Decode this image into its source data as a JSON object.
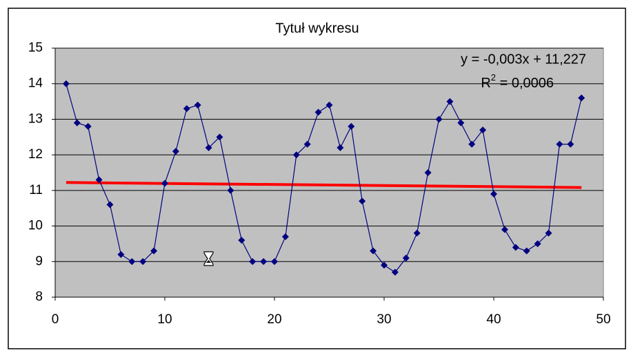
{
  "chart_data": {
    "type": "scatter",
    "title": "Tytuł wykresu",
    "x": [
      1,
      2,
      3,
      4,
      5,
      6,
      7,
      8,
      9,
      10,
      11,
      12,
      13,
      14,
      15,
      16,
      17,
      18,
      19,
      20,
      21,
      22,
      23,
      24,
      25,
      26,
      27,
      28,
      29,
      30,
      31,
      32,
      33,
      34,
      35,
      36,
      37,
      38,
      39,
      40,
      41,
      42,
      43,
      44,
      45,
      46,
      47,
      48
    ],
    "series": [
      {
        "color": "#000080",
        "values": [
          14.0,
          12.9,
          12.8,
          11.3,
          10.6,
          9.2,
          9.0,
          9.0,
          9.3,
          11.2,
          12.1,
          13.3,
          13.4,
          12.2,
          12.5,
          11.0,
          9.6,
          9.0,
          9.0,
          9.0,
          9.7,
          12.0,
          12.3,
          13.2,
          13.4,
          12.2,
          12.8,
          10.7,
          9.3,
          8.9,
          8.7,
          9.1,
          9.8,
          11.5,
          13.0,
          13.5,
          12.9,
          12.3,
          12.7,
          10.9,
          9.9,
          9.4,
          9.3,
          9.5,
          9.8,
          12.3,
          12.3,
          13.6
        ]
      }
    ],
    "trendline": {
      "color": "#ff0000",
      "slope": -0.003,
      "intercept": 11.227,
      "equation": "y = -0,003x + 11,227",
      "r_squared": {
        "base": "R",
        "sup": "2",
        "rest": " = 0,0006"
      }
    },
    "xlim": [
      0,
      50
    ],
    "xticks": [
      0,
      10,
      20,
      30,
      40,
      50
    ],
    "ylim": [
      8,
      15
    ],
    "yticks": [
      8,
      9,
      10,
      11,
      12,
      13,
      14,
      15
    ],
    "grid": true,
    "plot_background": "#c0c0c0"
  }
}
